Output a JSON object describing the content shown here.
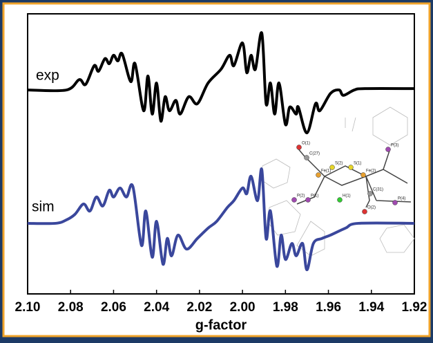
{
  "chart_data": {
    "type": "line",
    "xlabel": "g-factor",
    "xlim": [
      2.1,
      1.92
    ],
    "xticks": [
      {
        "value": 2.1,
        "label": "2.10"
      },
      2.08,
      2.06,
      2.04,
      2.02,
      {
        "value": 2.0,
        "label": "2.00"
      },
      1.98,
      1.96,
      1.94,
      1.92
    ],
    "ylim": [
      0,
      100
    ],
    "series": [
      {
        "name": "exp",
        "color": "#000000",
        "x": [
          2.1,
          2.082,
          2.076,
          2.073,
          2.069,
          2.067,
          2.064,
          2.062,
          2.06,
          2.058,
          2.056,
          2.052,
          2.05,
          2.046,
          2.044,
          2.042,
          2.04,
          2.038,
          2.036,
          2.034,
          2.031,
          2.029,
          2.025,
          2.021,
          2.016,
          2.01,
          2.006,
          2.004,
          2.0,
          1.998,
          1.996,
          1.994,
          1.991,
          1.989,
          1.987,
          1.985,
          1.983,
          1.98,
          1.978,
          1.975,
          1.974,
          1.97,
          1.966,
          1.964,
          1.959,
          1.955,
          1.953,
          1.948,
          1.943,
          1.92
        ],
        "values": [
          72.8,
          72.8,
          76.5,
          74.8,
          81.5,
          79.5,
          84.0,
          82.2,
          85.2,
          83.2,
          85.7,
          75.8,
          82.2,
          65.4,
          77.8,
          64.2,
          75.3,
          61.7,
          70.4,
          65.4,
          69.1,
          64.2,
          70.4,
          67.9,
          75.3,
          80.2,
          85.2,
          81.5,
          89.6,
          79.0,
          85.2,
          80.2,
          93.1,
          67.9,
          75.3,
          64.2,
          75.3,
          60.5,
          66.7,
          64.2,
          66.7,
          57.5,
          67.9,
          65.4,
          71.6,
          72.8,
          70.9,
          72.8,
          73.3,
          73.3
        ]
      },
      {
        "name": "sim",
        "color": "#3a479c",
        "x": [
          2.1,
          2.087,
          2.082,
          2.078,
          2.074,
          2.071,
          2.068,
          2.065,
          2.062,
          2.06,
          2.057,
          2.054,
          2.051,
          2.047,
          2.045,
          2.042,
          2.04,
          2.037,
          2.035,
          2.033,
          2.03,
          2.026,
          2.021,
          2.016,
          2.012,
          2.007,
          2.004,
          2.0,
          1.998,
          1.996,
          1.993,
          1.991,
          1.989,
          1.987,
          1.984,
          1.982,
          1.98,
          1.977,
          1.975,
          1.972,
          1.97,
          1.967,
          1.963,
          1.959,
          1.952,
          1.946,
          1.92
        ],
        "values": [
          25.2,
          25.2,
          26.4,
          28.4,
          32.1,
          29.6,
          34.6,
          31.4,
          37.0,
          34.6,
          37.8,
          34.6,
          38.3,
          17.3,
          29.6,
          13.1,
          25.9,
          10.6,
          19.8,
          13.6,
          21.0,
          16.0,
          19.8,
          23.5,
          25.9,
          30.9,
          33.3,
          37.8,
          35.8,
          42.0,
          33.3,
          44.4,
          19.8,
          29.6,
          9.9,
          21.0,
          12.3,
          18.0,
          13.6,
          18.0,
          8.6,
          18.0,
          19.8,
          21.0,
          23.5,
          25.2,
          25.2
        ]
      }
    ],
    "annotations": [
      "O(1)",
      "C(27)",
      "S(2)",
      "S(1)",
      "Fe(1)",
      "Fe(2)",
      "P(3)",
      "P(2)",
      "P(1)",
      "H(1)",
      "C(31)",
      "O(2)",
      "P(4)"
    ]
  }
}
